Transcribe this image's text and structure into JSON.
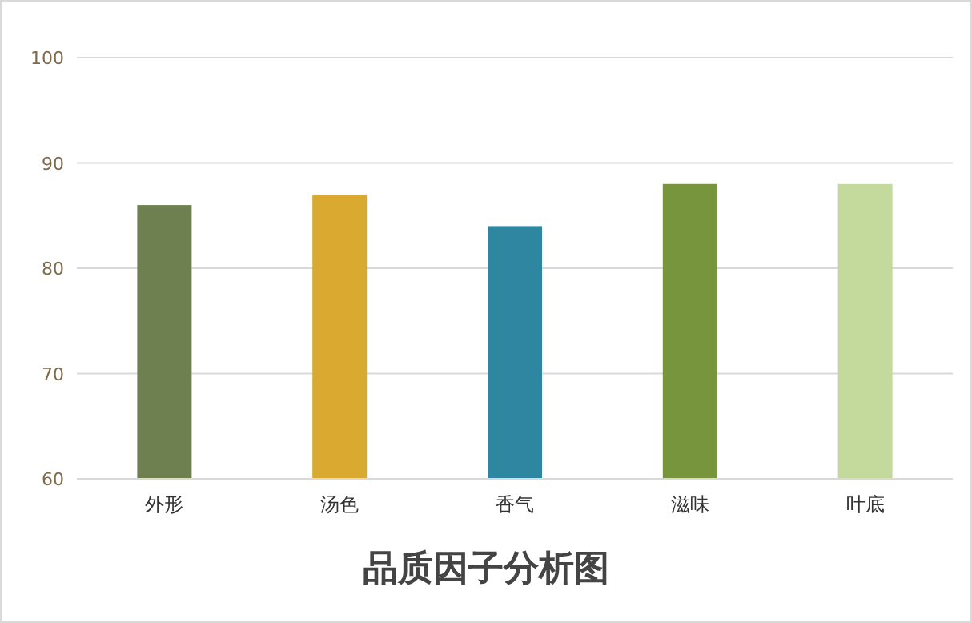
{
  "chart_data": {
    "type": "bar",
    "title": "品质因子分析图",
    "categories": [
      "外形",
      "汤色",
      "香气",
      "滋味",
      "叶底"
    ],
    "values": [
      86,
      87,
      84,
      88,
      88
    ],
    "colors": [
      "#6e7f50",
      "#d9a930",
      "#2e86a0",
      "#76953c",
      "#c4d99c"
    ],
    "ylim": [
      60,
      100
    ],
    "yticks": [
      60,
      70,
      80,
      90,
      100
    ],
    "grid": "y"
  }
}
